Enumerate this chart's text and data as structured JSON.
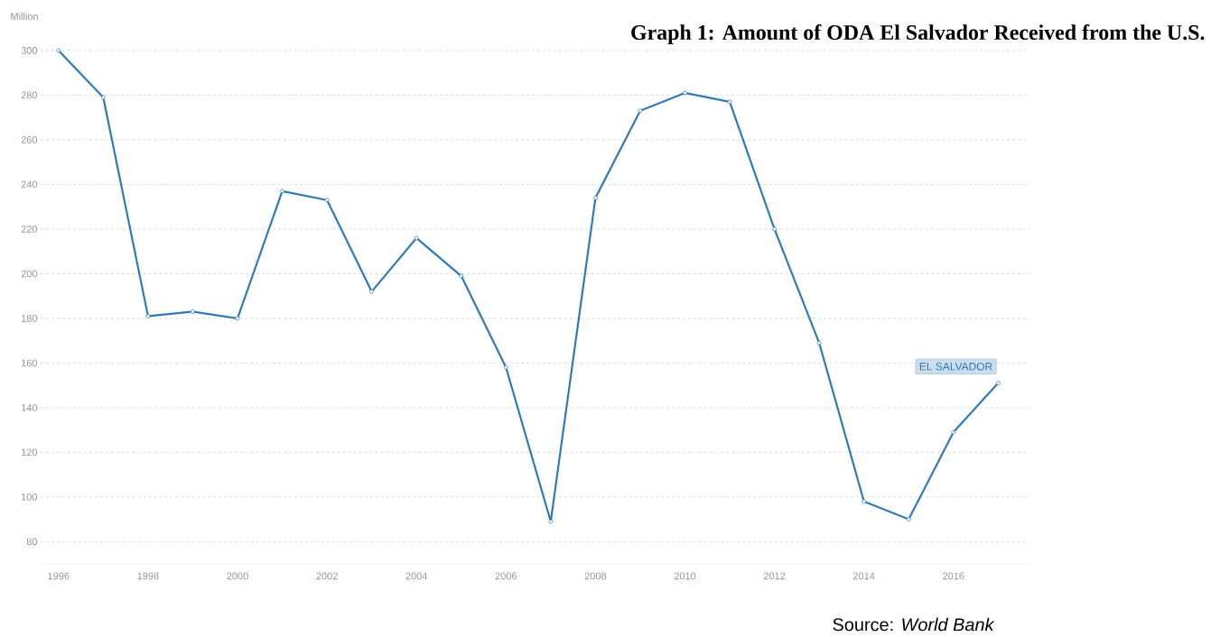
{
  "chart_data": {
    "type": "line",
    "title": "Graph 1: Amount of ODA El Salvador Received from the U.S.",
    "ylabel": "Million",
    "x": [
      1996,
      1997,
      1998,
      1999,
      2000,
      2001,
      2002,
      2003,
      2004,
      2005,
      2006,
      2007,
      2008,
      2009,
      2010,
      2011,
      2012,
      2013,
      2014,
      2015,
      2016,
      2017
    ],
    "series": [
      {
        "name": "EL SALVADOR",
        "color": "#2f7ab9",
        "values": [
          300,
          279,
          181,
          183,
          180,
          237,
          233,
          192,
          216,
          199,
          158,
          89,
          234,
          273,
          281,
          277,
          220,
          169,
          98,
          90,
          129,
          151
        ]
      }
    ],
    "xlim": [
      1995.6,
      2017.7
    ],
    "ylim": [
      70,
      300
    ],
    "xticks": [
      1996,
      1998,
      2000,
      2002,
      2004,
      2006,
      2008,
      2010,
      2012,
      2014,
      2016
    ],
    "yticks": [
      80,
      100,
      120,
      140,
      160,
      180,
      200,
      220,
      240,
      260,
      280,
      300
    ],
    "grid": "y",
    "marker": "circle",
    "line_style": "solid",
    "annotations": [
      "Source: *World Bank*"
    ]
  }
}
